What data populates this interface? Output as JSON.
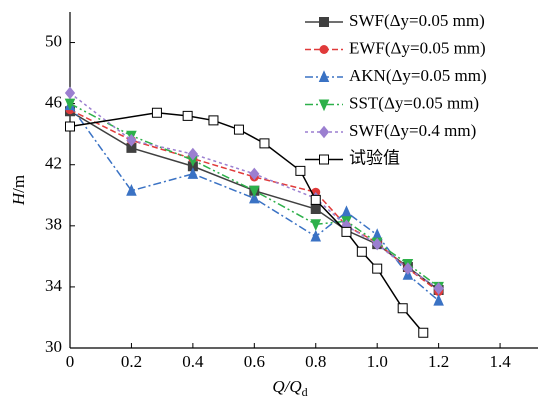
{
  "chart_data": {
    "type": "line",
    "xlabel": {
      "main": "Q/Q",
      "sub": "d"
    },
    "ylabel": {
      "main": "H",
      "unit": "/m"
    },
    "xlim": [
      0,
      1.53
    ],
    "ylim": [
      30,
      52
    ],
    "xticks": [
      0,
      0.2,
      0.4,
      0.6,
      0.8,
      {
        "value": 1,
        "label": "1.0"
      },
      1.2,
      1.4
    ],
    "yticks": [
      30,
      34,
      38,
      42,
      46,
      50
    ],
    "legend": "upper-right",
    "series": [
      {
        "name": "SWF(Δy=0.05 mm)",
        "color": "#404040",
        "marker": "square",
        "line_style": "solid",
        "x": [
          0,
          0.2,
          0.4,
          0.6,
          0.8,
          0.9,
          1.0,
          1.1,
          1.2
        ],
        "values": [
          45.5,
          43.1,
          41.9,
          40.3,
          39.1,
          37.7,
          36.8,
          35.3,
          33.8
        ]
      },
      {
        "name": "EWF(Δy=0.05 mm)",
        "color": "#e03a3a",
        "marker": "circle",
        "line_style": "dashed",
        "x": [
          0,
          0.2,
          0.4,
          0.6,
          0.8,
          0.9,
          1.0,
          1.1,
          1.2
        ],
        "values": [
          45.6,
          43.6,
          42.4,
          41.2,
          40.2,
          38.0,
          36.9,
          35.2,
          33.7
        ]
      },
      {
        "name": "AKN(Δy=0.05 mm)",
        "color": "#3a72c4",
        "marker": "triangle",
        "line_style": "dashdot",
        "x": [
          0,
          0.2,
          0.4,
          0.6,
          0.8,
          0.9,
          1.0,
          1.1,
          1.2
        ],
        "values": [
          45.9,
          40.3,
          41.4,
          39.8,
          37.3,
          38.9,
          37.4,
          34.8,
          33.1
        ]
      },
      {
        "name": "SST(Δy=0.05 mm)",
        "color": "#2db04a",
        "marker": "triangle-down",
        "line_style": "dashdotdot",
        "x": [
          0,
          0.2,
          0.4,
          0.6,
          0.8,
          0.9,
          1.0,
          1.1,
          1.2
        ],
        "values": [
          46.0,
          43.9,
          42.3,
          40.3,
          38.1,
          38.3,
          36.9,
          35.5,
          34.0
        ]
      },
      {
        "name": "SWF(Δy=0.4 mm)",
        "color": "#9b7fd0",
        "marker": "diamond",
        "line_style": "dotted",
        "x": [
          0,
          0.2,
          0.4,
          0.6,
          0.8,
          0.9,
          1.0,
          1.1,
          1.2
        ],
        "values": [
          46.7,
          43.6,
          42.7,
          41.4,
          39.8,
          38.0,
          36.8,
          35.2,
          33.9
        ]
      },
      {
        "name": "试验值",
        "color": "#000000",
        "marker": "open-square",
        "line_style": "solid",
        "x": [
          0,
          0.283,
          0.383,
          0.467,
          0.55,
          0.633,
          0.75,
          0.8,
          0.9,
          0.95,
          1.0,
          1.083,
          1.15
        ],
        "values": [
          44.5,
          45.4,
          45.2,
          44.9,
          44.3,
          43.4,
          41.6,
          39.7,
          37.6,
          36.3,
          35.2,
          32.6,
          31.0
        ]
      }
    ]
  }
}
